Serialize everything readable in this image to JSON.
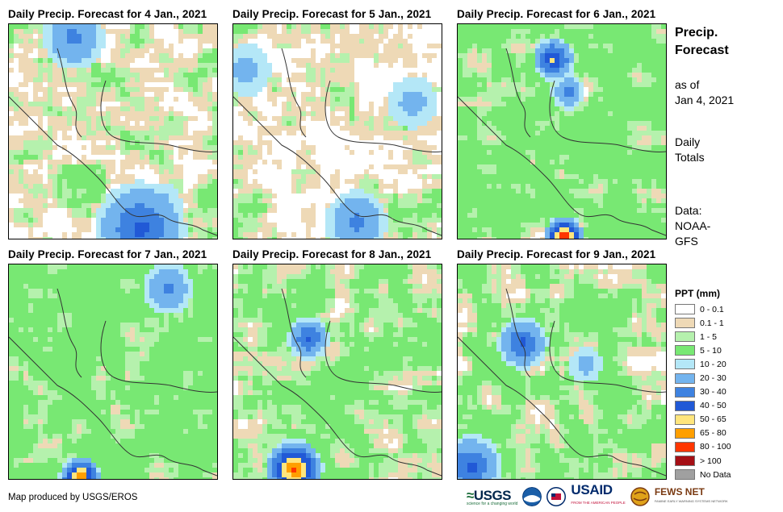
{
  "panels": [
    {
      "title": "Daily Precip. Forecast for 4 Jan., 2021"
    },
    {
      "title": "Daily Precip. Forecast for 5 Jan., 2021"
    },
    {
      "title": "Daily Precip. Forecast for 6 Jan., 2021"
    },
    {
      "title": "Daily Precip. Forecast for 7 Jan., 2021"
    },
    {
      "title": "Daily Precip. Forecast for 8 Jan., 2021"
    },
    {
      "title": "Daily Precip. Forecast for 9 Jan., 2021"
    }
  ],
  "sidebar": {
    "title_line1": "Precip.",
    "title_line2": "Forecast",
    "asof_line1": "as of",
    "asof_line2": "Jan 4, 2021",
    "daily_line1": "Daily",
    "daily_line2": "Totals",
    "source_line1": "Data:",
    "source_line2": "NOAA-",
    "source_line3": "GFS"
  },
  "legend": {
    "title": "PPT (mm)",
    "items": [
      {
        "label": "0 - 0.1",
        "color": "#ffffff"
      },
      {
        "label": "0.1 - 1",
        "color": "#eed9b6"
      },
      {
        "label": "1 - 5",
        "color": "#b5f1ad"
      },
      {
        "label": "5 - 10",
        "color": "#78e873"
      },
      {
        "label": "10 - 20",
        "color": "#b4e7f7"
      },
      {
        "label": "20 - 30",
        "color": "#73b4ee"
      },
      {
        "label": "30 - 40",
        "color": "#3e82e0"
      },
      {
        "label": "40 - 50",
        "color": "#2159d6"
      },
      {
        "label": "50 - 65",
        "color": "#ffe57c"
      },
      {
        "label": "65 - 80",
        "color": "#ff9f00"
      },
      {
        "label": "80 - 100",
        "color": "#ff3600"
      },
      {
        "label": "> 100",
        "color": "#a50f15"
      },
      {
        "label": "No Data",
        "color": "#a0a0a0"
      }
    ]
  },
  "footer": {
    "credit": "Map produced by USGS/EROS",
    "logo_usgs": "USGS",
    "logo_usgs_tagline": "science for a changing world",
    "logo_usaid": "USAID",
    "logo_usaid_tagline": "FROM THE AMERICAN PEOPLE",
    "logo_fews": "FEWS NET",
    "logo_fews_tagline": "FAMINE EARLY WARNING SYSTEMS NETWORK"
  }
}
